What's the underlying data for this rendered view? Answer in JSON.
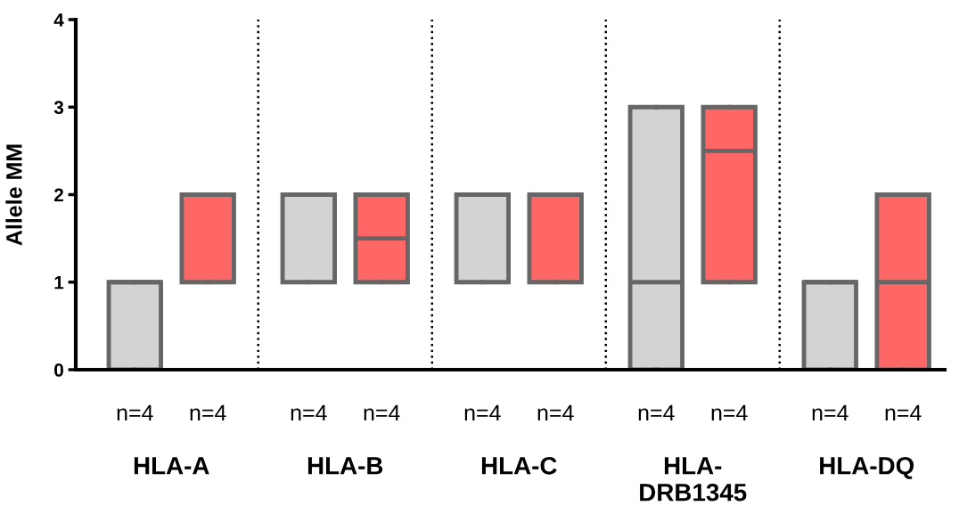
{
  "chart_data": {
    "type": "box",
    "ylabel": "Allele MM",
    "categories": [
      "HLA-A",
      "HLA-B",
      "HLA-C",
      "HLA-\nDRB1345",
      "HLA-DQ"
    ],
    "ylim": [
      0,
      4
    ],
    "yticks": [
      0,
      1,
      2,
      3,
      4
    ],
    "grid": false,
    "legend": false,
    "series": [
      {
        "color": "#d3d3d3",
        "boxes": [
          {
            "low": 0,
            "q1": 0,
            "median": 1,
            "q3": 1,
            "high": 1
          },
          {
            "low": 1,
            "q1": 1,
            "median": 2,
            "q3": 2,
            "high": 2
          },
          {
            "low": 1,
            "q1": 1,
            "median": 2,
            "q3": 2,
            "high": 2
          },
          {
            "low": 0,
            "q1": 0,
            "median": 1,
            "q3": 3,
            "high": 3
          },
          {
            "low": 0,
            "q1": 0,
            "median": 1,
            "q3": 1,
            "high": 1
          }
        ]
      },
      {
        "color": "#ff6666",
        "boxes": [
          {
            "low": 1,
            "q1": 1,
            "median": 2,
            "q3": 2,
            "high": 2
          },
          {
            "low": 1,
            "q1": 1,
            "median": 1.5,
            "q3": 2,
            "high": 2
          },
          {
            "low": 1,
            "q1": 1,
            "median": 2,
            "q3": 2,
            "high": 2
          },
          {
            "low": 1,
            "q1": 1,
            "median": 2.5,
            "q3": 3,
            "high": 3
          },
          {
            "low": 0,
            "q1": 0,
            "median": 1,
            "q3": 2,
            "high": 2
          }
        ]
      }
    ],
    "annotations": [
      "n=4",
      "n=4",
      "n=4",
      "n=4",
      "n=4",
      "n=4",
      "n=4",
      "n=4",
      "n=4",
      "n=4"
    ]
  }
}
